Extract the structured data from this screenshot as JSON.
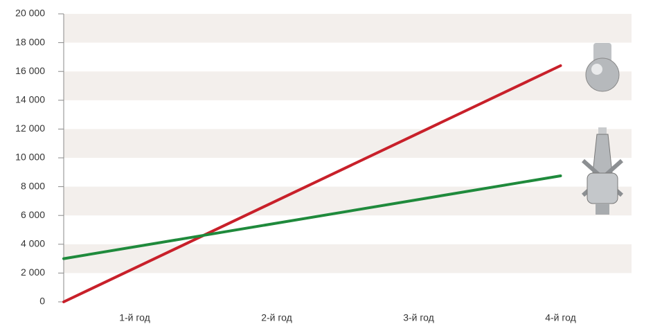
{
  "chart_data": {
    "type": "line",
    "xlim": [
      0.5,
      4.5
    ],
    "xticks": [
      {
        "value": 1,
        "label": "1-й год"
      },
      {
        "value": 2,
        "label": "2-й год"
      },
      {
        "value": 3,
        "label": "3-й год"
      },
      {
        "value": 4,
        "label": "4-й год"
      }
    ],
    "ylim": [
      0,
      20000
    ],
    "yticks": [
      {
        "value": 0,
        "label": "0"
      },
      {
        "value": 2000,
        "label": "2 000"
      },
      {
        "value": 4000,
        "label": "4 000"
      },
      {
        "value": 6000,
        "label": "6 000"
      },
      {
        "value": 8000,
        "label": "8 000"
      },
      {
        "value": 10000,
        "label": "10 000"
      },
      {
        "value": 12000,
        "label": "12 000"
      },
      {
        "value": 14000,
        "label": "14 000"
      },
      {
        "value": 16000,
        "label": "16 000"
      },
      {
        "value": 18000,
        "label": "18 000"
      },
      {
        "value": 20000,
        "label": "20 000"
      }
    ],
    "bands": true,
    "series": [
      {
        "color": "#c8202a",
        "x": [
          0.5,
          4
        ],
        "values": [
          0,
          16400
        ]
      },
      {
        "color": "#1f8a3c",
        "x": [
          0.5,
          4
        ],
        "values": [
          3000,
          8750
        ]
      }
    ]
  }
}
